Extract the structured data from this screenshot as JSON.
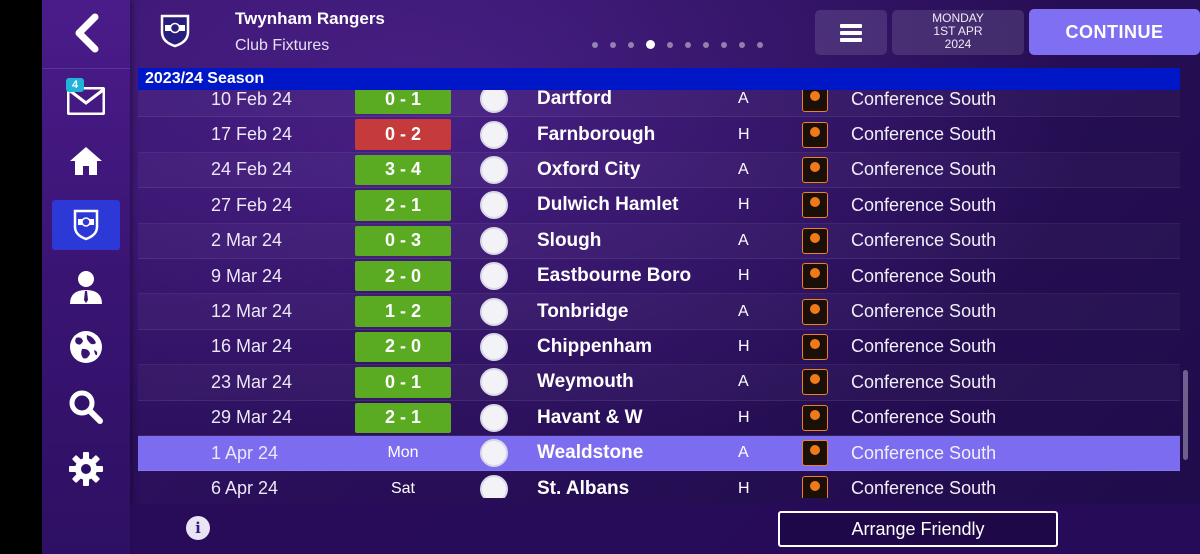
{
  "header": {
    "club_name": "Twynham Rangers",
    "subtitle": "Club Fixtures",
    "date_line1": "MONDAY",
    "date_line2": "1ST APR",
    "date_line3": "2024",
    "continue_label": "CONTINUE",
    "page_dots": 10,
    "active_dot": 3
  },
  "sidebar": {
    "inbox_badge": "4",
    "items": [
      "back",
      "inbox",
      "home",
      "club",
      "manager",
      "world",
      "search",
      "settings"
    ],
    "active": "club"
  },
  "season_label": "2023/24 Season",
  "fixtures": [
    {
      "date": "10 Feb 24",
      "score": "0 - 1",
      "result": "win",
      "team": "Dartford",
      "venue": "A",
      "competition": "Conference South"
    },
    {
      "date": "17 Feb 24",
      "score": "0 - 2",
      "result": "loss",
      "team": "Farnborough",
      "venue": "H",
      "competition": "Conference South"
    },
    {
      "date": "24 Feb 24",
      "score": "3 - 4",
      "result": "win",
      "team": "Oxford City",
      "venue": "A",
      "competition": "Conference South"
    },
    {
      "date": "27 Feb 24",
      "score": "2 - 1",
      "result": "win",
      "team": "Dulwich Hamlet",
      "venue": "H",
      "competition": "Conference South"
    },
    {
      "date": "2 Mar 24",
      "score": "0 - 3",
      "result": "win",
      "team": "Slough",
      "venue": "A",
      "competition": "Conference South"
    },
    {
      "date": "9 Mar 24",
      "score": "2 - 0",
      "result": "win",
      "team": "Eastbourne Boro",
      "venue": "H",
      "competition": "Conference South"
    },
    {
      "date": "12 Mar 24",
      "score": "1 - 2",
      "result": "win",
      "team": "Tonbridge",
      "venue": "A",
      "competition": "Conference South"
    },
    {
      "date": "16 Mar 24",
      "score": "2 - 0",
      "result": "win",
      "team": "Chippenham",
      "venue": "H",
      "competition": "Conference South"
    },
    {
      "date": "23 Mar 24",
      "score": "0 - 1",
      "result": "win",
      "team": "Weymouth",
      "venue": "A",
      "competition": "Conference South"
    },
    {
      "date": "29 Mar 24",
      "score": "2 - 1",
      "result": "win",
      "team": "Havant & W",
      "venue": "H",
      "competition": "Conference South"
    },
    {
      "date": "1 Apr 24",
      "score": "Mon",
      "result": "upcoming",
      "team": "Wealdstone",
      "venue": "A",
      "competition": "Conference South",
      "highlight": true
    },
    {
      "date": "6 Apr 24",
      "score": "Sat",
      "result": "upcoming",
      "team": "St. Albans",
      "venue": "H",
      "competition": "Conference South"
    }
  ],
  "colors": {
    "win": "#5bab22",
    "loss": "#c53a3a",
    "highlight": "#7c6cf0",
    "season_bar": "#0017c8",
    "continue": "#7f6ff2"
  },
  "footer": {
    "info_icon": "i",
    "friendly_label": "Arrange Friendly"
  }
}
